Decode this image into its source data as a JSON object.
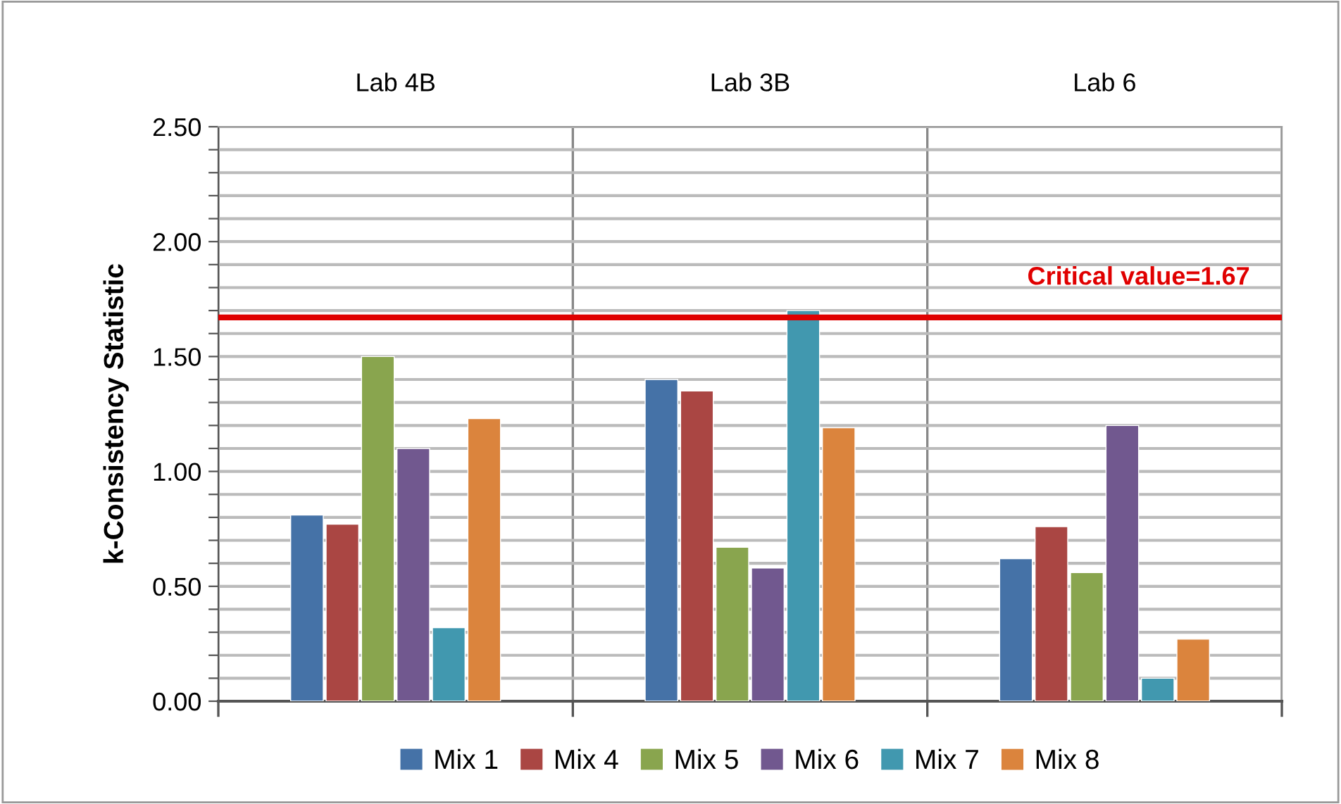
{
  "chart_data": {
    "type": "bar",
    "ylabel": "k-Consistency Statistic",
    "categories": [
      "Lab 4B",
      "Lab 3B",
      "Lab 6"
    ],
    "series": [
      {
        "name": "Mix 1",
        "color": "#4572a7",
        "values": [
          0.81,
          1.4,
          0.62
        ]
      },
      {
        "name": "Mix 4",
        "color": "#aa4643",
        "values": [
          0.77,
          1.35,
          0.76
        ]
      },
      {
        "name": "Mix 5",
        "color": "#89a54e",
        "values": [
          1.5,
          0.67,
          0.56
        ]
      },
      {
        "name": "Mix 6",
        "color": "#71588f",
        "values": [
          1.1,
          0.58,
          1.2
        ]
      },
      {
        "name": "Mix 7",
        "color": "#4198af",
        "values": [
          0.32,
          1.7,
          0.1
        ]
      },
      {
        "name": "Mix 8",
        "color": "#db843d",
        "values": [
          1.23,
          1.19,
          0.27
        ]
      }
    ],
    "ylim": [
      0,
      2.5
    ],
    "yticks": [
      {
        "value": 0,
        "label": "0.00"
      },
      {
        "value": 0.1,
        "label": null
      },
      {
        "value": 0.2,
        "label": null
      },
      {
        "value": 0.3,
        "label": null
      },
      {
        "value": 0.4,
        "label": null
      },
      {
        "value": 0.5,
        "label": "0.50"
      },
      {
        "value": 0.6,
        "label": null
      },
      {
        "value": 0.7,
        "label": null
      },
      {
        "value": 0.8,
        "label": null
      },
      {
        "value": 0.9,
        "label": null
      },
      {
        "value": 1.0,
        "label": "1.00"
      },
      {
        "value": 1.1,
        "label": null
      },
      {
        "value": 1.2,
        "label": null
      },
      {
        "value": 1.3,
        "label": null
      },
      {
        "value": 1.4,
        "label": null
      },
      {
        "value": 1.5,
        "label": "1.50"
      },
      {
        "value": 1.6,
        "label": null
      },
      {
        "value": 1.7,
        "label": null
      },
      {
        "value": 1.8,
        "label": null
      },
      {
        "value": 1.9,
        "label": null
      },
      {
        "value": 2.0,
        "label": "2.00"
      },
      {
        "value": 2.1,
        "label": null
      },
      {
        "value": 2.2,
        "label": null
      },
      {
        "value": 2.3,
        "label": null
      },
      {
        "value": 2.4,
        "label": null
      },
      {
        "value": 2.5,
        "label": "2.50"
      }
    ],
    "ref_lines": [
      {
        "axis": "y",
        "value": 1.67,
        "label": "Critical value=1.67",
        "color": "#e00000"
      }
    ],
    "grid": true,
    "legend": "bottom"
  }
}
